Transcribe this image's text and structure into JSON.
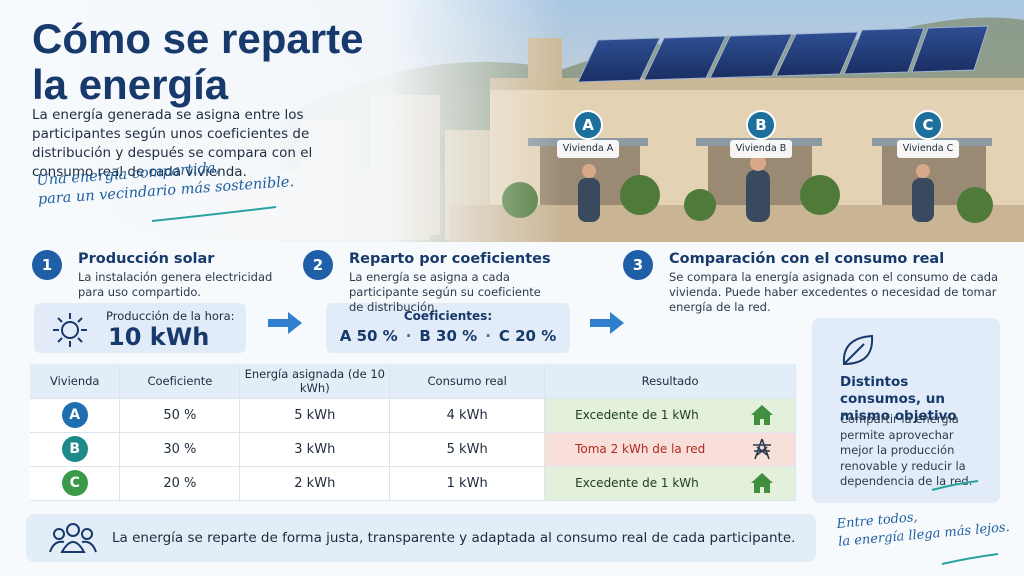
{
  "header": {
    "title_line1": "Cómo se reparte",
    "title_line2": "la energía",
    "intro": "La energía generada se asigna entre los participantes según unos coeficientes de distribución y después se compara con el consumo real de cada vivienda.",
    "tagline_1": "Una energía compartida,",
    "tagline_2": "para un vecindario más sostenible."
  },
  "photo": {
    "labels": [
      {
        "letter": "A",
        "name": "Vivienda A"
      },
      {
        "letter": "B",
        "name": "Vivienda B"
      },
      {
        "letter": "C",
        "name": "Vivienda C"
      }
    ]
  },
  "steps": [
    {
      "number": "1",
      "title": "Producción solar",
      "text": "La instalación genera electricidad para uso compartido."
    },
    {
      "number": "2",
      "title": "Reparto por coeficientes",
      "text": "La energía se asigna a cada participante según su coeficiente de distribución."
    },
    {
      "number": "3",
      "title": "Comparación con el consumo real",
      "text": "Se compara la energía asignada con el consumo de cada vivienda. Puede haber excedentes o necesidad de tomar energía de la red."
    }
  ],
  "production": {
    "label": "Producción de la hora:",
    "value": "10 kWh"
  },
  "coefficients": {
    "label": "Coeficientes:",
    "items": [
      "A 50 %",
      "B 30 %",
      "C 20 %"
    ]
  },
  "table": {
    "headers": [
      "Vivienda",
      "Coeficiente",
      "Energía asignada (de 10 kWh)",
      "Consumo real",
      "Resultado"
    ],
    "rows": [
      [
        "A",
        "50 %",
        "5 kWh",
        "4 kWh",
        "Excedente de 1 kWh"
      ],
      [
        "B",
        "30 %",
        "3 kWh",
        "5 kWh",
        "Toma 2 kWh de la red"
      ],
      [
        "C",
        "20 %",
        "2 kWh",
        "1 kWh",
        "Excedente de 1 kWh"
      ]
    ]
  },
  "side_card": {
    "title": "Distintos consumos, un mismo objetivo",
    "text": "Compartir la energía permite aprovechar mejor la producción renovable y reducir la dependencia de la red."
  },
  "footer": {
    "text": "La energía se reparte de forma justa, transparente y adaptada al consumo real de cada participante.",
    "signature_1": "Entre todos,",
    "signature_2": "la energía llega más lejos."
  }
}
